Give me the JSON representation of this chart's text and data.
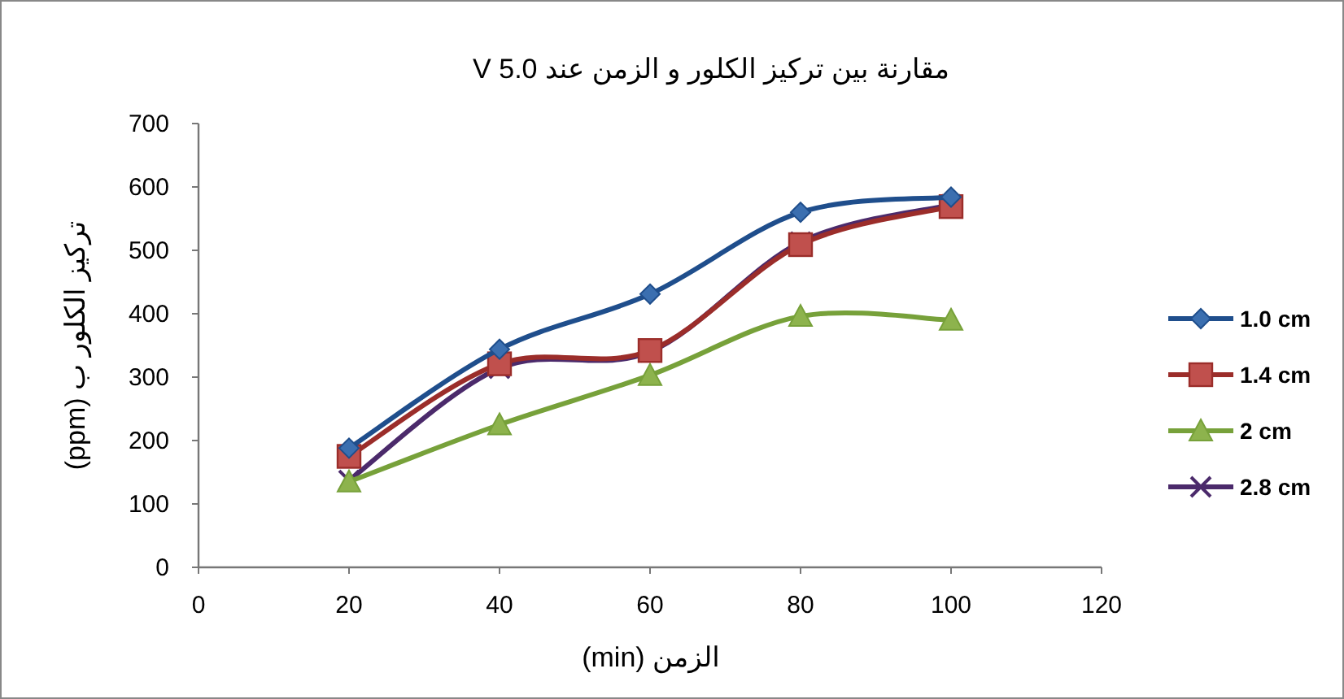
{
  "chart_data": {
    "type": "line",
    "title": "مقارنة بين تركيز الكلور و الزمن عند 5.0 V",
    "xlabel": "الزمن (min)",
    "ylabel": "تركيز الكلور ب (ppm)",
    "x": [
      20,
      40,
      60,
      80,
      100
    ],
    "xlim": [
      0,
      120
    ],
    "xticks": [
      0,
      20,
      40,
      60,
      80,
      100,
      120
    ],
    "ylim": [
      0,
      700
    ],
    "yticks": [
      0,
      100,
      200,
      300,
      400,
      500,
      600,
      700
    ],
    "grid": false,
    "legend": "right",
    "line_style": "solid",
    "series": [
      {
        "name": "1.0 cm",
        "color": "#1f4e8c",
        "marker": "diamond",
        "values": [
          188,
          344,
          431,
          560,
          584
        ]
      },
      {
        "name": "1.4 cm",
        "color": "#9b2d2a",
        "marker": "square",
        "values": [
          175,
          321,
          342,
          509,
          569
        ]
      },
      {
        "name": "2 cm",
        "color": "#77a13a",
        "marker": "triangle",
        "values": [
          135,
          225,
          303,
          396,
          390
        ]
      },
      {
        "name": "2.8 cm",
        "color": "#4b2a6b",
        "marker": "cross",
        "values": [
          137,
          314,
          340,
          513,
          572
        ]
      }
    ]
  }
}
